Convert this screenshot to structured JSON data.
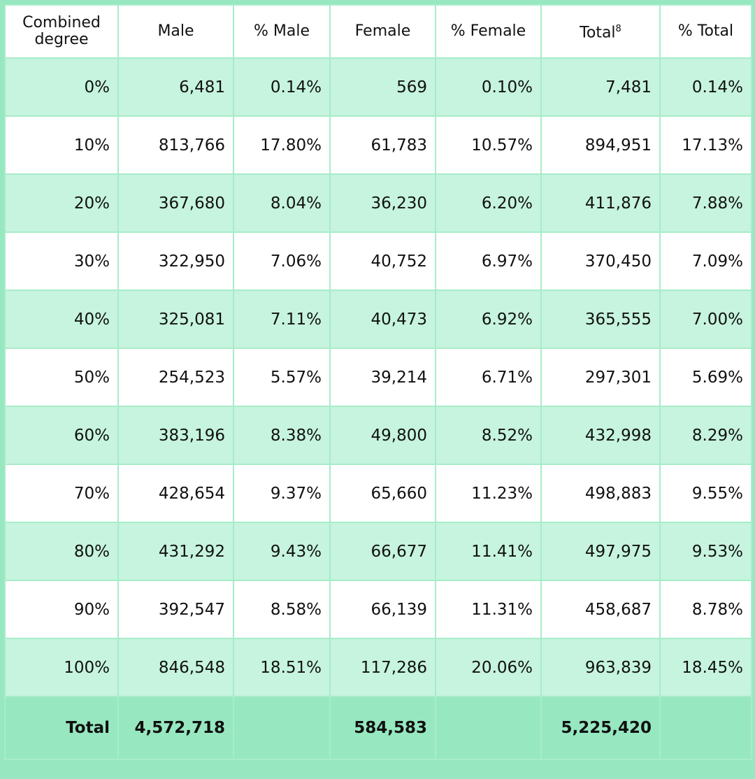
{
  "table": {
    "header": [
      "Combined degree",
      "Male",
      "% Male",
      "Female",
      "% Female",
      {
        "text": "Total",
        "note": "8"
      },
      "% Total"
    ],
    "rows": [
      [
        "0%",
        "6,481",
        "0.14%",
        "569",
        "0.10%",
        "7,481",
        "0.14%"
      ],
      [
        "10%",
        "813,766",
        "17.80%",
        "61,783",
        "10.57%",
        "894,951",
        "17.13%"
      ],
      [
        "20%",
        "367,680",
        "8.04%",
        "36,230",
        "6.20%",
        "411,876",
        "7.88%"
      ],
      [
        "30%",
        "322,950",
        "7.06%",
        "40,752",
        "6.97%",
        "370,450",
        "7.09%"
      ],
      [
        "40%",
        "325,081",
        "7.11%",
        "40,473",
        "6.92%",
        "365,555",
        "7.00%"
      ],
      [
        "50%",
        "254,523",
        "5.57%",
        "39,214",
        "6.71%",
        "297,301",
        "5.69%"
      ],
      [
        "60%",
        "383,196",
        "8.38%",
        "49,800",
        "8.52%",
        "432,998",
        "8.29%"
      ],
      [
        "70%",
        "428,654",
        "9.37%",
        "65,660",
        "11.23%",
        "498,883",
        "9.55%"
      ],
      [
        "80%",
        "431,292",
        "9.43%",
        "66,677",
        "11.41%",
        "497,975",
        "9.53%"
      ],
      [
        "90%",
        "392,547",
        "8.58%",
        "66,139",
        "11.31%",
        "458,687",
        "8.78%"
      ],
      [
        "100%",
        "846,548",
        "18.51%",
        "117,286",
        "20.06%",
        "963,839",
        "18.45%"
      ]
    ],
    "total": {
      "label": "Total",
      "male": "4,572,718",
      "female": "584,583",
      "total": "5,225,420"
    }
  }
}
